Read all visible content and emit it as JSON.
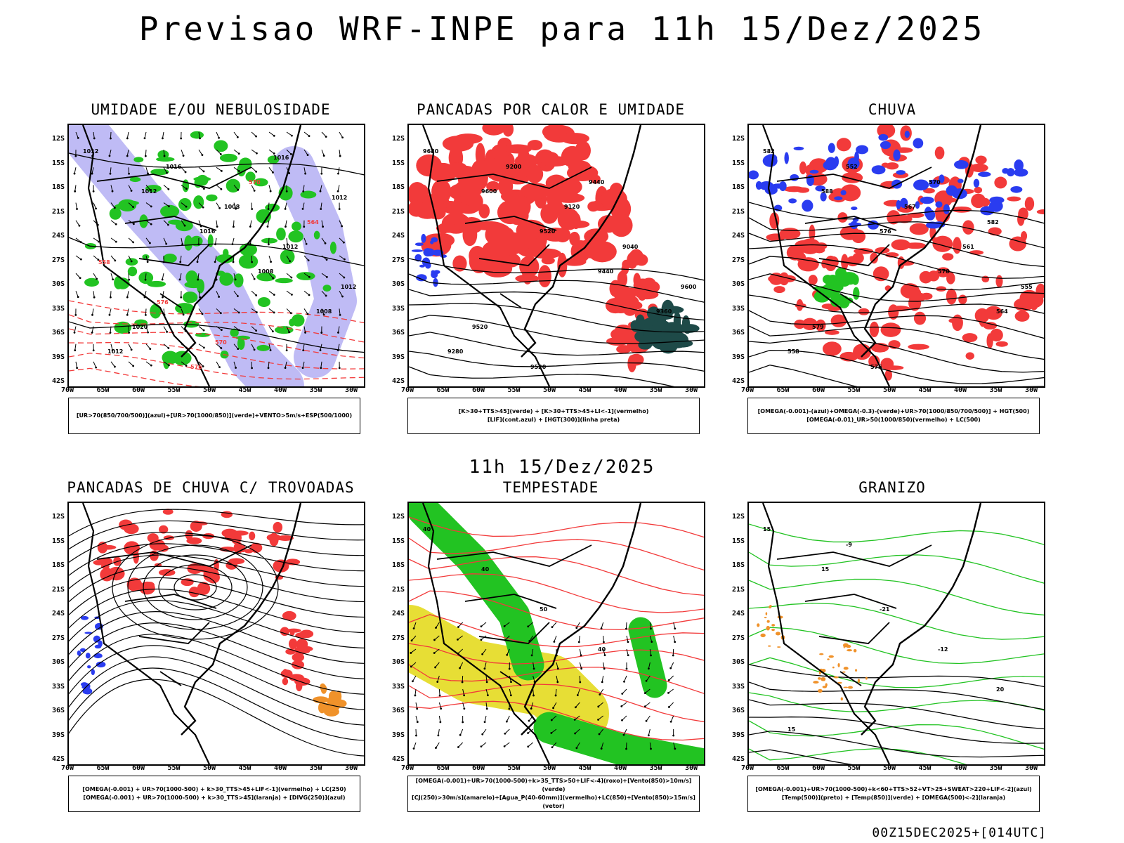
{
  "title": "Previsao WRF-INPE  para 11h 15/Dez/2025",
  "subtitle": "11h 15/Dez/2025",
  "footer": "00Z15DEC2025+[014UTC]",
  "axis": {
    "lat_labels": [
      "12S",
      "15S",
      "18S",
      "21S",
      "24S",
      "27S",
      "30S",
      "33S",
      "36S",
      "39S",
      "42S"
    ],
    "lon_labels": [
      "70W",
      "65W",
      "60W",
      "55W",
      "50W",
      "45W",
      "40W",
      "35W",
      "30W"
    ]
  },
  "colors": {
    "red": "#f23a3a",
    "blue": "#2a3cf0",
    "green": "#22c322",
    "lavender": "#b8b4f4",
    "yellow": "#e6dc2a",
    "orange": "#f0922a",
    "darkteal": "#1e4a48"
  },
  "panels": [
    {
      "title": "UMIDADE E/OU NEBULOSIDADE",
      "legend": [
        "[UR>70(850/700/500)](azul)+[UR>70(1000/850)](verde)+VENTO>5m/s+ESP(500/1000)"
      ],
      "contour_labels": [
        "1012",
        "1012",
        "1016",
        "1008",
        "1008",
        "1012",
        "1016",
        "1008",
        "1012",
        "1012",
        "1020",
        "576",
        "570",
        "564",
        "558",
        "576",
        "570",
        "1016",
        "1012"
      ]
    },
    {
      "title": "PANCADAS POR CALOR E UMIDADE",
      "legend": [
        "[K>30+TTS>45](verde) + [K>30+TTS>45+LI<-1](vermelho)",
        "[LIF](cont.azul) + [HGT(300)](linha preta)"
      ],
      "contour_labels": [
        "9680",
        "9600",
        "9520",
        "9440",
        "9360",
        "9280",
        "9200",
        "9120",
        "9040",
        "9600",
        "9520",
        "9520",
        "9440"
      ]
    },
    {
      "title": "CHUVA",
      "legend": [
        "[OMEGA(-0.001)-(azul)+OMEGA(-0.3)-(verde)+UR>70(1000/850/700/500)] + HGT(500)",
        "[OMEGA(-0.01)_UR>50(1000/850)(vermelho) + LC(500)"
      ],
      "contour_labels": [
        "582",
        "588",
        "576",
        "570",
        "564",
        "558",
        "552",
        "567",
        "561",
        "555",
        "579",
        "576",
        "570",
        "582"
      ]
    },
    {
      "title": "PANCADAS DE CHUVA C/ TROVOADAS",
      "legend": [
        "[OMEGA(-0.001) + UR>70(1000-500) + k>30_TTS>45+LIF<-1](vermelho) + LC(250)",
        "[OMEGA(-0.001) + UR>70(1000-500) + k>30_TTS>45](laranja) + [DIVG(250)](azul)"
      ],
      "contour_labels": []
    },
    {
      "title": "TEMPESTADE",
      "legend": [
        "[OMEGA(-0.001)+UR>70(1000-500)+k>35_TTS>50+LIF<-4](roxo)+[Vento(850)>10m/s](verde)",
        "[CJ(250)>30m/s](amarelo)+[Agua_P(40-60mm)](vermelho)+LC(850)+[Vento(850)>15m/s](vetor)"
      ],
      "contour_labels": [
        "40",
        "40",
        "50",
        "40"
      ]
    },
    {
      "title": "GRANIZO",
      "legend": [
        "[OMEGA(-0.001)+UR>70(1000-500)+k<60+TTS>52+VT>25+SWEAT>220+LIF<-2](azul)",
        "[Temp(500)](preto) + [Temp(850)](verde) + [OMEGA(500)<-2](laranja)"
      ],
      "contour_labels": [
        "15",
        "15",
        "-21",
        "-12",
        "20",
        "15",
        "-9"
      ]
    }
  ]
}
